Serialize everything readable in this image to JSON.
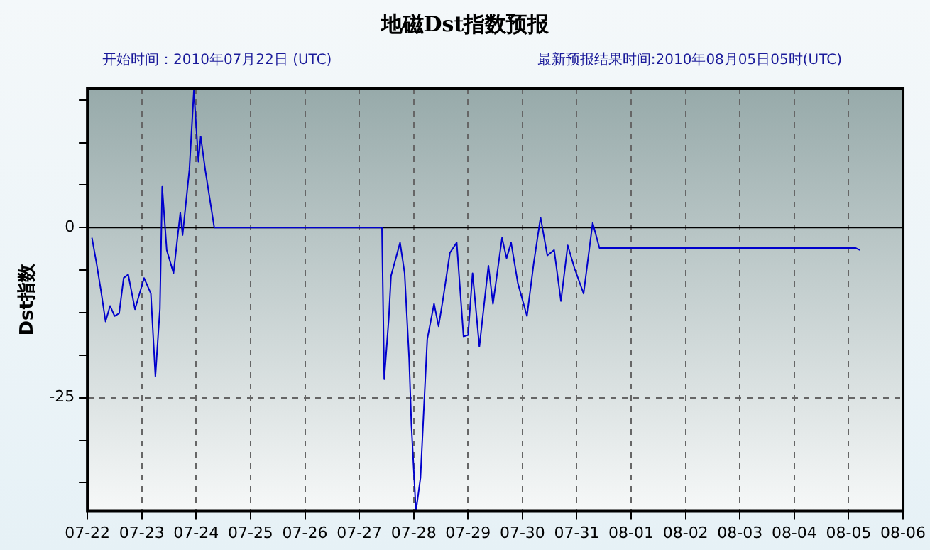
{
  "chart_data": {
    "type": "line",
    "title": "地磁Dst指数预报",
    "subtitle": "开始时间：2010年07月22日 (UTC)",
    "annotations": [
      "最新预报结果时间:2010年08月05日05时(UTC)"
    ],
    "ylabel": "Dst指数",
    "x": [
      "2010-07-22T02:00",
      "2010-07-22T04:00",
      "2010-07-22T06:00",
      "2010-07-22T08:00",
      "2010-07-22T10:00",
      "2010-07-22T12:00",
      "2010-07-22T14:00",
      "2010-07-22T16:00",
      "2010-07-22T18:00",
      "2010-07-22T21:00",
      "2010-07-23T01:00",
      "2010-07-23T04:00",
      "2010-07-23T06:00",
      "2010-07-23T08:00",
      "2010-07-23T09:00",
      "2010-07-23T11:00",
      "2010-07-23T14:00",
      "2010-07-23T17:00",
      "2010-07-23T18:00",
      "2010-07-23T21:00",
      "2010-07-23T23:00",
      "2010-07-24T01:00",
      "2010-07-24T02:00",
      "2010-07-24T04:00",
      "2010-07-24T08:00",
      "2010-07-27T10:00",
      "2010-07-27T11:00",
      "2010-07-27T13:00",
      "2010-07-27T14:00",
      "2010-07-27T18:00",
      "2010-07-27T20:00",
      "2010-07-27T22:00",
      "2010-07-27T23:00",
      "2010-07-28T01:00",
      "2010-07-28T03:00",
      "2010-07-28T06:00",
      "2010-07-28T09:00",
      "2010-07-28T11:00",
      "2010-07-28T13:00",
      "2010-07-28T16:00",
      "2010-07-28T19:00",
      "2010-07-28T22:00",
      "2010-07-29T00:00",
      "2010-07-29T02:00",
      "2010-07-29T05:00",
      "2010-07-29T09:00",
      "2010-07-29T11:00",
      "2010-07-29T15:00",
      "2010-07-29T17:00",
      "2010-07-29T19:00",
      "2010-07-29T22:00",
      "2010-07-30T02:00",
      "2010-07-30T05:00",
      "2010-07-30T08:00",
      "2010-07-30T11:00",
      "2010-07-30T14:00",
      "2010-07-30T17:00",
      "2010-07-30T20:00",
      "2010-07-30T23:00",
      "2010-07-31T03:00",
      "2010-07-31T07:00",
      "2010-07-31T10:00",
      "2010-08-05T03:00",
      "2010-08-05T05:00"
    ],
    "series": [
      {
        "color": "#0000cc",
        "values": [
          -1.5,
          -5.2,
          -9.3,
          -13.8,
          -11.5,
          -13,
          -12.6,
          -7.4,
          -6.9,
          -12,
          -7.4,
          -9.7,
          -21.9,
          -11.9,
          6,
          -3.3,
          -6.7,
          2.2,
          -1.1,
          8.5,
          20.2,
          9.7,
          13.4,
          8.5,
          0,
          0,
          -22.3,
          -13.4,
          -7.1,
          -2.2,
          -6.7,
          -19.3,
          -29,
          -41.7,
          -36.8,
          -16.4,
          -11.2,
          -14.5,
          -10.4,
          -3.7,
          -2.2,
          -16,
          -15.8,
          -6.7,
          -17.5,
          -5.6,
          -11.2,
          -1.5,
          -4.5,
          -2.2,
          -8.2,
          -13,
          -5.2,
          1.5,
          -4.1,
          -3.3,
          -10.8,
          -2.6,
          -6,
          -9.7,
          0.7,
          -3,
          -3,
          -3.3
        ]
      }
    ],
    "xlim": [
      "2010-07-22",
      "2010-08-06"
    ],
    "xticks": [
      {
        "value": "2010-07-22",
        "label": "07-22"
      },
      {
        "value": "2010-07-23",
        "label": "07-23"
      },
      {
        "value": "2010-07-24",
        "label": "07-24"
      },
      {
        "value": "2010-07-25",
        "label": "07-25"
      },
      {
        "value": "2010-07-26",
        "label": "07-26"
      },
      {
        "value": "2010-07-27",
        "label": "07-27"
      },
      {
        "value": "2010-07-28",
        "label": "07-28"
      },
      {
        "value": "2010-07-29",
        "label": "07-29"
      },
      {
        "value": "2010-07-30",
        "label": "07-30"
      },
      {
        "value": "2010-07-31",
        "label": "07-31"
      },
      {
        "value": "2010-08-01",
        "label": "08-01"
      },
      {
        "value": "2010-08-02",
        "label": "08-02"
      },
      {
        "value": "2010-08-03",
        "label": "08-03"
      },
      {
        "value": "2010-08-04",
        "label": "08-04"
      },
      {
        "value": "2010-08-05",
        "label": "08-05"
      },
      {
        "value": "2010-08-06",
        "label": "08-06"
      }
    ],
    "ylim": [
      -41.7,
      20.5
    ],
    "yticks": [
      {
        "value": 18.75,
        "label": null
      },
      {
        "value": 12.5,
        "label": null
      },
      {
        "value": 6.25,
        "label": null
      },
      0,
      {
        "value": -6.25,
        "label": null
      },
      {
        "value": -12.5,
        "label": null
      },
      {
        "value": -18.75,
        "label": null
      },
      -25,
      {
        "value": -31.25,
        "label": null
      },
      {
        "value": -37.5,
        "label": null
      }
    ],
    "ref_lines": [
      {
        "axis": "y",
        "value": 0,
        "color": "#000000",
        "line_style": "solid"
      }
    ],
    "grid": true,
    "legend": false,
    "marker": "none",
    "line_style": "solid"
  }
}
